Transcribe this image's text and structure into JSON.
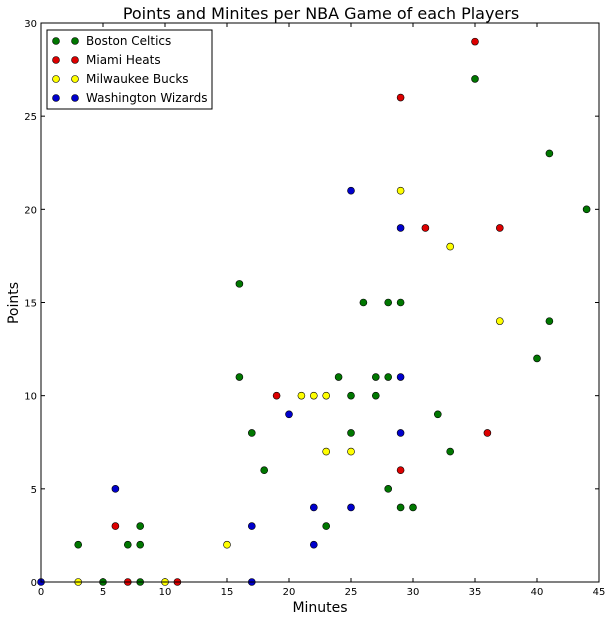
{
  "chart_data": {
    "type": "scatter",
    "title": "Points and Minites per NBA Game of each Players",
    "xlabel": "Minutes",
    "ylabel": "Points",
    "xlim": [
      0,
      45
    ],
    "ylim": [
      0,
      30
    ],
    "xticks": [
      0,
      5,
      10,
      15,
      20,
      25,
      30,
      35,
      40,
      45
    ],
    "yticks": [
      0,
      5,
      10,
      15,
      20,
      25,
      30
    ],
    "grid": false,
    "legend_position": "top-left",
    "series": [
      {
        "name": "Boston Celtics",
        "color": "#007700",
        "points": [
          [
            3,
            2
          ],
          [
            5,
            0
          ],
          [
            7,
            2
          ],
          [
            8,
            2
          ],
          [
            8,
            3
          ],
          [
            8,
            0
          ],
          [
            16,
            16
          ],
          [
            16,
            11
          ],
          [
            17,
            8
          ],
          [
            18,
            6
          ],
          [
            23,
            3
          ],
          [
            24,
            11
          ],
          [
            25,
            10
          ],
          [
            25,
            8
          ],
          [
            26,
            15
          ],
          [
            27,
            11
          ],
          [
            27,
            10
          ],
          [
            28,
            15
          ],
          [
            28,
            11
          ],
          [
            28,
            5
          ],
          [
            29,
            15
          ],
          [
            29,
            4
          ],
          [
            30,
            4
          ],
          [
            32,
            9
          ],
          [
            33,
            7
          ],
          [
            35,
            27
          ],
          [
            40,
            12
          ],
          [
            41,
            23
          ],
          [
            41,
            14
          ],
          [
            44,
            20
          ]
        ]
      },
      {
        "name": "Miami Heats",
        "color": "#dd0000",
        "points": [
          [
            6,
            3
          ],
          [
            7,
            0
          ],
          [
            11,
            0
          ],
          [
            19,
            10
          ],
          [
            29,
            26
          ],
          [
            29,
            6
          ],
          [
            31,
            19
          ],
          [
            35,
            29
          ],
          [
            36,
            8
          ],
          [
            37,
            19
          ]
        ]
      },
      {
        "name": "Milwaukee Bucks",
        "color": "#ffff00",
        "points": [
          [
            3,
            0
          ],
          [
            10,
            0
          ],
          [
            15,
            2
          ],
          [
            21,
            10
          ],
          [
            22,
            10
          ],
          [
            23,
            10
          ],
          [
            23,
            7
          ],
          [
            25,
            7
          ],
          [
            29,
            21
          ],
          [
            33,
            18
          ],
          [
            37,
            14
          ]
        ]
      },
      {
        "name": "Washington Wizards",
        "color": "#0000cc",
        "points": [
          [
            0,
            0
          ],
          [
            6,
            5
          ],
          [
            17,
            3
          ],
          [
            17,
            0
          ],
          [
            20,
            9
          ],
          [
            22,
            4
          ],
          [
            22,
            2
          ],
          [
            25,
            21
          ],
          [
            25,
            4
          ],
          [
            29,
            19
          ],
          [
            29,
            11
          ],
          [
            29,
            8
          ]
        ]
      }
    ]
  }
}
